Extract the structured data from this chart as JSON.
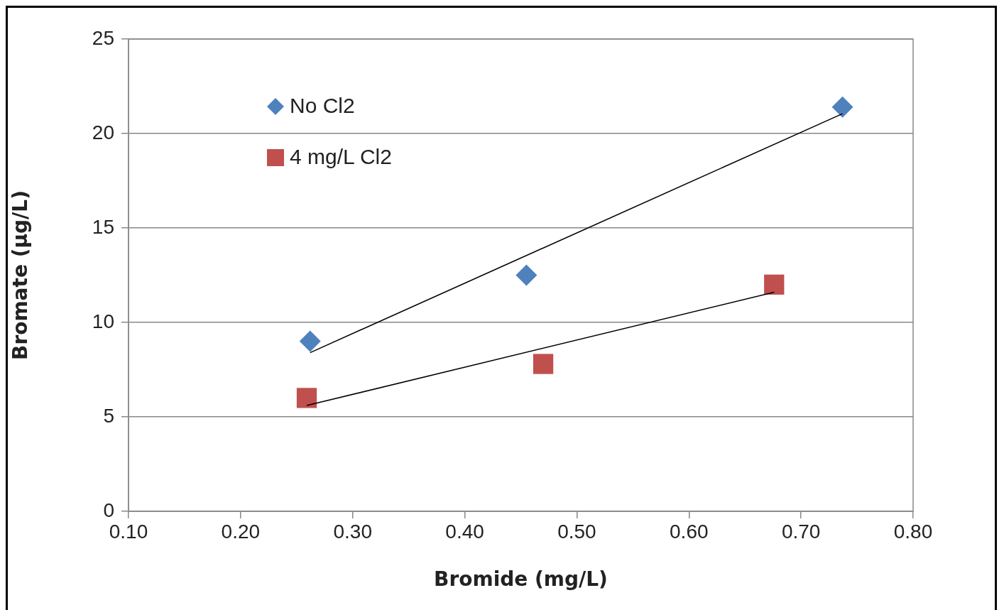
{
  "chart_data": {
    "type": "scatter",
    "xlabel": "Bromide (mg/L)",
    "ylabel": "Bromate (µg/L)",
    "xlim": [
      0.1,
      0.8
    ],
    "xticks": [
      {
        "value": 0.1,
        "label": "0.10"
      },
      {
        "value": 0.2,
        "label": "0.20"
      },
      {
        "value": 0.3,
        "label": "0.30"
      },
      {
        "value": 0.4,
        "label": "0.40"
      },
      {
        "value": 0.5,
        "label": "0.50"
      },
      {
        "value": 0.6,
        "label": "0.60"
      },
      {
        "value": 0.7,
        "label": "0.70"
      },
      {
        "value": 0.8,
        "label": "0.80"
      }
    ],
    "ylim": [
      0,
      25
    ],
    "yticks": [
      0,
      5,
      10,
      15,
      20,
      25
    ],
    "grid": "y",
    "legend": "top left",
    "series": [
      {
        "name": "No Cl2",
        "color": "#4f81bd",
        "marker": "diamond",
        "x": [
          0.262,
          0.455,
          0.737
        ],
        "values": [
          9.0,
          12.5,
          21.4
        ]
      },
      {
        "name": "4 mg/L Cl2",
        "color": "#c0504d",
        "marker": "square",
        "x": [
          0.259,
          0.47,
          0.676
        ],
        "values": [
          6.0,
          7.8,
          12.0
        ]
      },
      {
        "type": "line",
        "color": "#000000",
        "marker": "none",
        "x": [
          0.262,
          0.737
        ],
        "values": [
          8.4,
          21.05
        ]
      },
      {
        "type": "line",
        "color": "#000000",
        "marker": "none",
        "x": [
          0.259,
          0.676
        ],
        "values": [
          5.6,
          11.6
        ]
      }
    ]
  }
}
